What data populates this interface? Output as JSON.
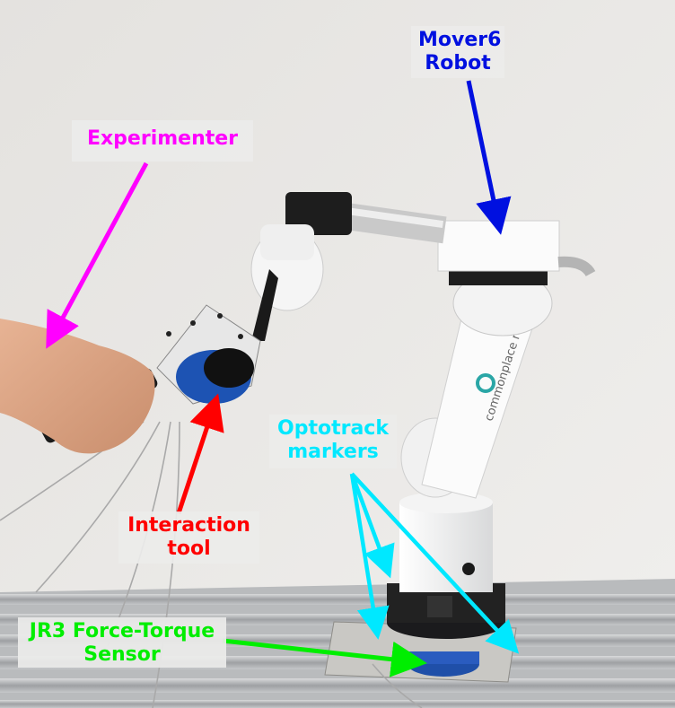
{
  "labels": {
    "experimenter": {
      "text": "Experimenter",
      "color": "#ff00ff"
    },
    "mover6": {
      "line1": "Mover6",
      "line2": "Robot",
      "color": "#0010e0"
    },
    "optotrack": {
      "line1": "Optotrack",
      "line2": "markers",
      "color": "#00e8ff"
    },
    "interaction": {
      "line1": "Interaction",
      "line2": "tool",
      "color": "#ff0000"
    },
    "jr3": {
      "line1": "JR3 Force-Torque",
      "line2": "Sensor",
      "color": "#00ee00"
    }
  },
  "robot_branding": {
    "brand": "commonplace",
    "brand_word": "robotics"
  }
}
